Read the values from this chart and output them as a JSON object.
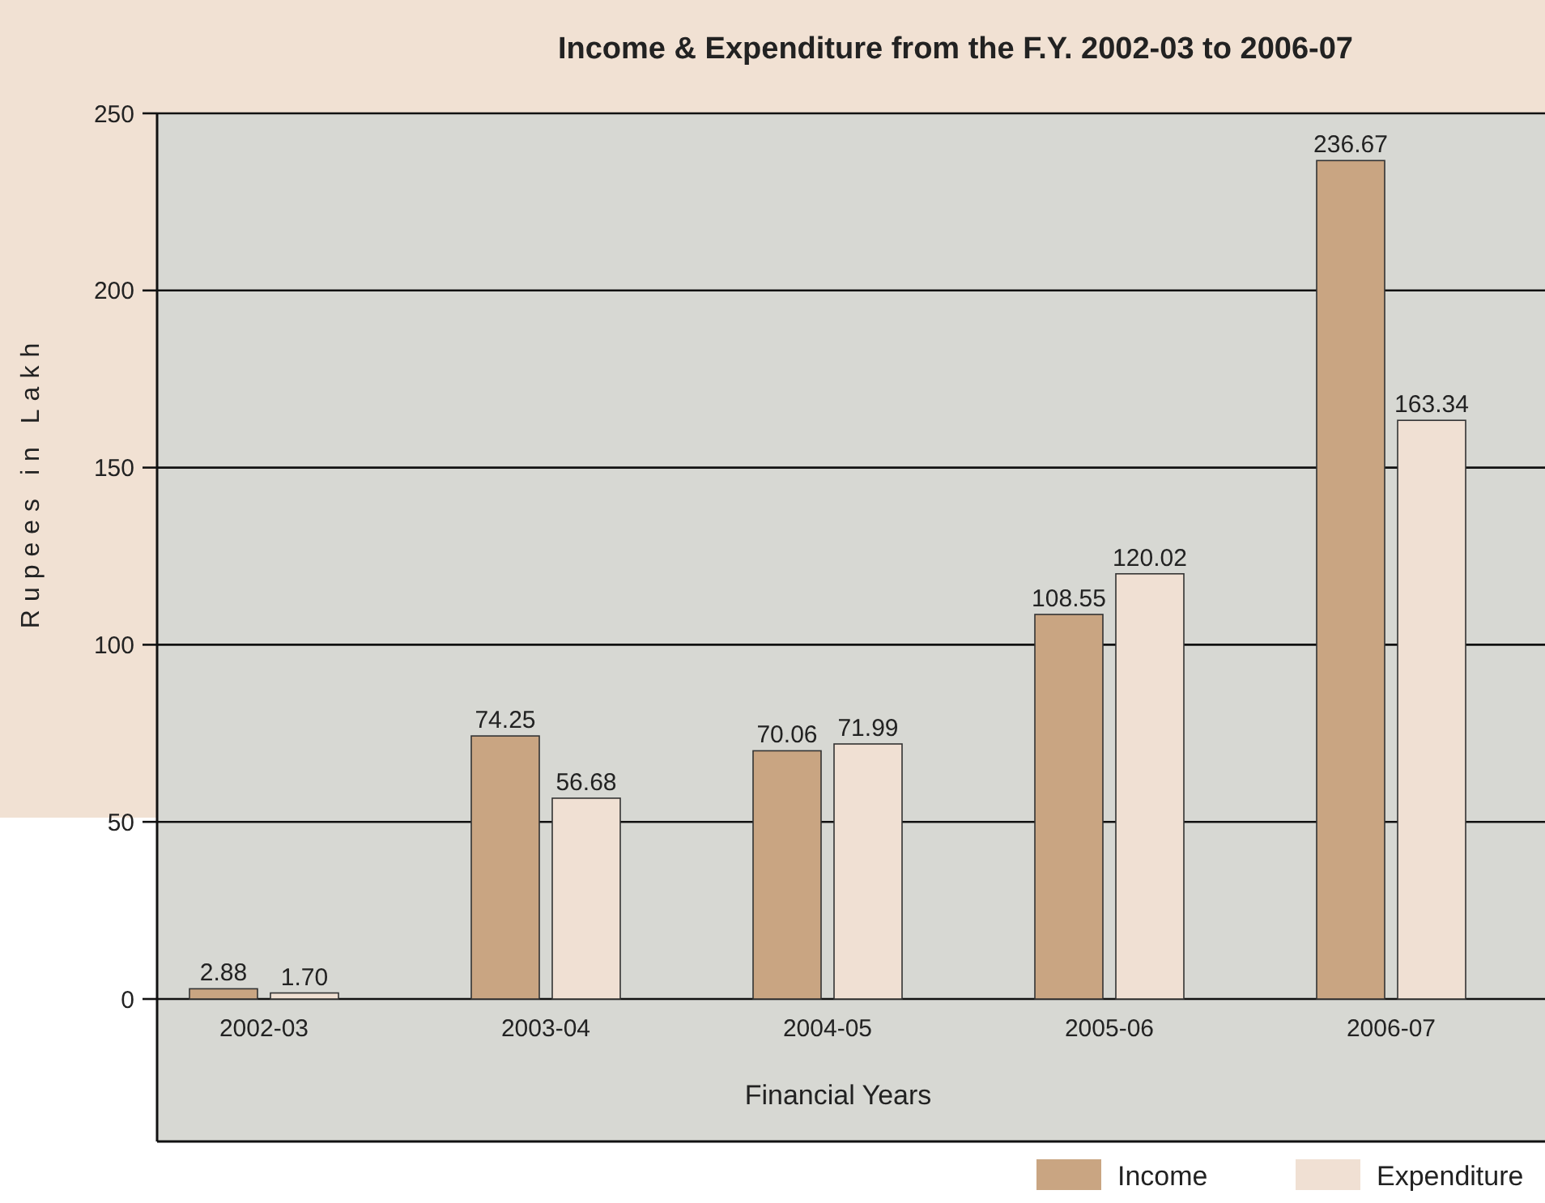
{
  "chart_data": {
    "type": "bar",
    "title": "Income & Expenditure from the F.Y. 2002-03 to 2006-07",
    "xlabel": "Financial Years",
    "ylabel": "Rupees in Lakh",
    "categories": [
      "2002-03",
      "2003-04",
      "2004-05",
      "2005-06",
      "2006-07"
    ],
    "series": [
      {
        "name": "Income",
        "color": "#c9a582",
        "values": [
          2.88,
          74.25,
          70.06,
          108.55,
          236.67
        ]
      },
      {
        "name": "Expenditure",
        "color": "#f0e0d3",
        "values": [
          1.7,
          56.68,
          71.99,
          120.02,
          163.34
        ]
      }
    ],
    "value_labels": [
      [
        "2.88",
        "74.25",
        "70.06",
        "108.55",
        "236.67"
      ],
      [
        "1.70",
        "56.68",
        "71.99",
        "120.02",
        "163.34"
      ]
    ],
    "ylim": [
      0,
      250
    ],
    "yticks": [
      0,
      50,
      100,
      150,
      200,
      250
    ],
    "grid": "y",
    "legend": "bottom right"
  }
}
